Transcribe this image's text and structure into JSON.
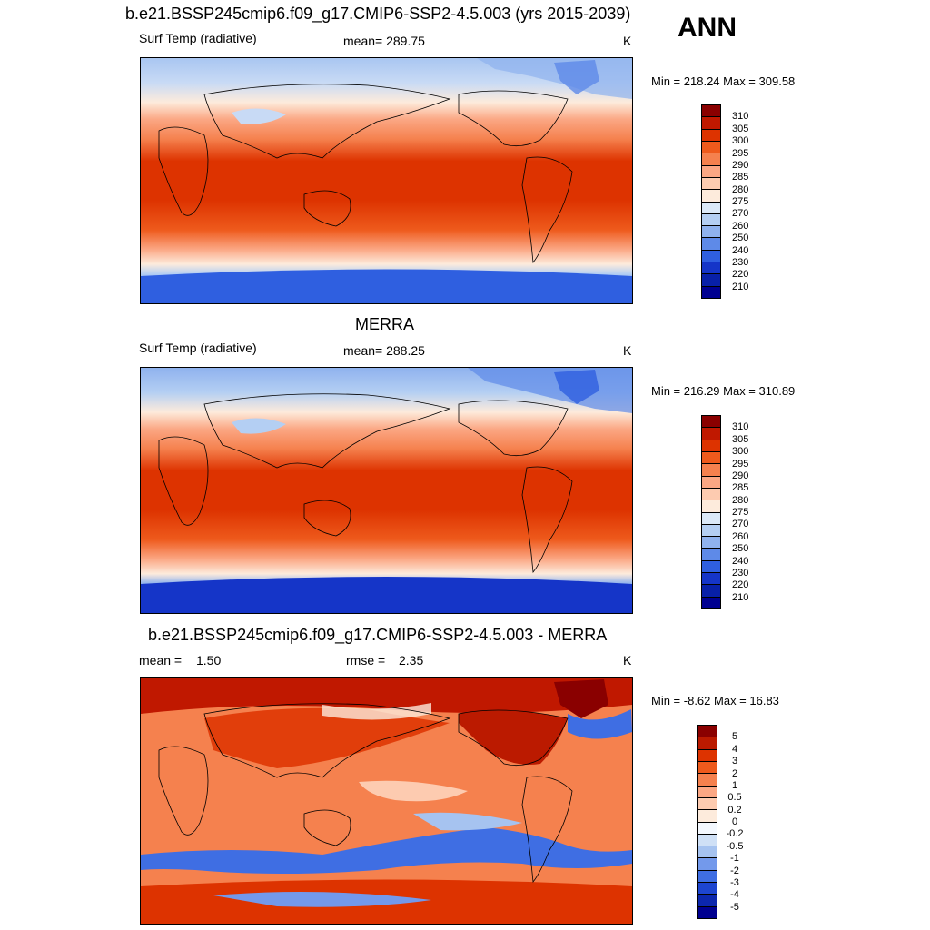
{
  "header": {
    "title": "b.e21.BSSP245cmip6.f09_g17.CMIP6-SSP2-4.5.003 (yrs 2015-2039)",
    "season": "ANN"
  },
  "panels": [
    {
      "variable": "Surf Temp (radiative)",
      "stat": "mean= 289.75",
      "units": "K",
      "minmax": "Min = 218.24 Max = 309.58",
      "colorbar_labels": [
        "310",
        "305",
        "300",
        "295",
        "290",
        "285",
        "280",
        "275",
        "270",
        "260",
        "250",
        "240",
        "230",
        "220",
        "210"
      ]
    },
    {
      "subtitle": "MERRA",
      "variable": "Surf Temp (radiative)",
      "stat": "mean= 288.25",
      "units": "K",
      "minmax": "Min = 216.29 Max = 310.89",
      "colorbar_labels": [
        "310",
        "305",
        "300",
        "295",
        "290",
        "285",
        "280",
        "275",
        "270",
        "260",
        "250",
        "240",
        "230",
        "220",
        "210"
      ]
    },
    {
      "subtitle": "b.e21.BSSP245cmip6.f09_g17.CMIP6-SSP2-4.5.003 - MERRA",
      "mean_label": "mean =",
      "mean_value": "1.50",
      "rmse_label": "rmse =",
      "rmse_value": "2.35",
      "units": "K",
      "minmax": "Min =  -8.62 Max =  16.83",
      "colorbar_labels": [
        "5",
        "4",
        "3",
        "2",
        "1",
        "0.5",
        "0.2",
        "0",
        "-0.2",
        "-0.5",
        "-1",
        "-2",
        "-3",
        "-4",
        "-5"
      ]
    }
  ],
  "colors": {
    "abs_scale": [
      "#8a0000",
      "#c01800",
      "#dd3300",
      "#ee5a1c",
      "#f5814e",
      "#fba784",
      "#fdcbb0",
      "#fdebdc",
      "#dbe9f8",
      "#b4cff3",
      "#8fb2ee",
      "#5e8ae8",
      "#2f5fe0",
      "#1535c8",
      "#0820a8",
      "#000090"
    ],
    "diff_scale": [
      "#8a0000",
      "#bb1a00",
      "#dd3300",
      "#ee5a1c",
      "#f5814e",
      "#fba784",
      "#fdcbb0",
      "#fdebdc",
      "#f4f8fe",
      "#cfe0f6",
      "#a6c3f0",
      "#7399eb",
      "#3f6ee3",
      "#1d45d0",
      "#0c27ae",
      "#000090"
    ]
  }
}
